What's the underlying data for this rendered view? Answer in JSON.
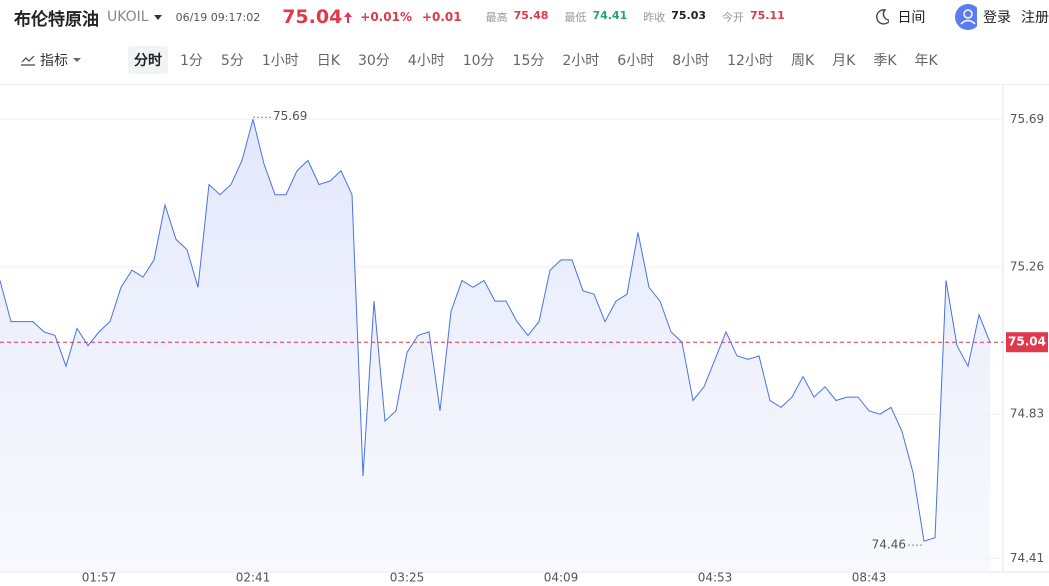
{
  "header": {
    "title": "布伦特原油",
    "symbol": "UKOIL",
    "datetime": "06/19 09:17:02",
    "price": "75.04",
    "change_pct": "+0.01%",
    "change": "+0.01",
    "stats": [
      {
        "label": "最高",
        "value": "75.48"
      },
      {
        "label": "最低",
        "value": "74.41"
      },
      {
        "label": "昨收",
        "value": "75.03"
      },
      {
        "label": "今开",
        "value": "75.11"
      }
    ],
    "theme": "日间",
    "login": "登录",
    "register": "注册"
  },
  "toolbar": {
    "indicator": "指标",
    "periods": [
      "分时",
      "1分",
      "5分",
      "1小时",
      "日K",
      "30分",
      "4小时",
      "10分",
      "15分",
      "2小时",
      "6小时",
      "8小时",
      "12小时",
      "周K",
      "月K",
      "季K",
      "年K"
    ]
  },
  "chart_data": {
    "type": "line",
    "color": "#4a72e8",
    "categories": [
      null,
      null,
      null,
      null,
      null,
      null,
      null,
      null,
      null,
      "01:57",
      null,
      null,
      null,
      null,
      null,
      null,
      null,
      null,
      null,
      null,
      null,
      null,
      null,
      "02:41",
      null,
      null,
      null,
      null,
      null,
      null,
      null,
      null,
      null,
      null,
      null,
      null,
      null,
      "03:25",
      null,
      null,
      null,
      null,
      null,
      null,
      null,
      null,
      null,
      null,
      null,
      null,
      null,
      "04:09",
      null,
      null,
      null,
      null,
      null,
      null,
      null,
      null,
      null,
      null,
      null,
      null,
      null,
      "04:53",
      null,
      null,
      null,
      null,
      null,
      null,
      null,
      null,
      null,
      null,
      null,
      null,
      null,
      "08:43",
      null,
      null,
      null,
      null,
      null,
      null,
      null,
      null,
      null,
      null,
      null
    ],
    "values": [
      75.22,
      75.1,
      75.1,
      75.1,
      75.07,
      75.06,
      74.97,
      75.08,
      75.03,
      75.07,
      75.1,
      75.2,
      75.25,
      75.23,
      75.28,
      75.44,
      75.34,
      75.31,
      75.2,
      75.5,
      75.47,
      75.5,
      75.57,
      75.69,
      75.56,
      75.47,
      75.47,
      75.54,
      75.57,
      75.5,
      75.51,
      75.54,
      75.47,
      74.65,
      75.16,
      74.81,
      74.84,
      75.01,
      75.06,
      75.07,
      74.84,
      75.13,
      75.22,
      75.2,
      75.22,
      75.16,
      75.16,
      75.1,
      75.06,
      75.1,
      75.25,
      75.28,
      75.28,
      75.19,
      75.18,
      75.1,
      75.16,
      75.18,
      75.36,
      75.2,
      75.16,
      75.07,
      75.04,
      74.87,
      74.91,
      74.99,
      75.07,
      75.0,
      74.99,
      75.0,
      74.87,
      74.85,
      74.88,
      74.94,
      74.88,
      74.91,
      74.87,
      74.88,
      74.88,
      74.84,
      74.83,
      74.85,
      74.78,
      74.66,
      74.46,
      74.47,
      75.22,
      75.03,
      74.97,
      75.12,
      75.04
    ],
    "ylim": [
      74.37,
      75.79
    ],
    "yticks": [
      75.69,
      75.26,
      74.83,
      74.41
    ],
    "grid": true,
    "last_price": 75.04,
    "high_label": 75.69,
    "low_label": 74.46
  }
}
